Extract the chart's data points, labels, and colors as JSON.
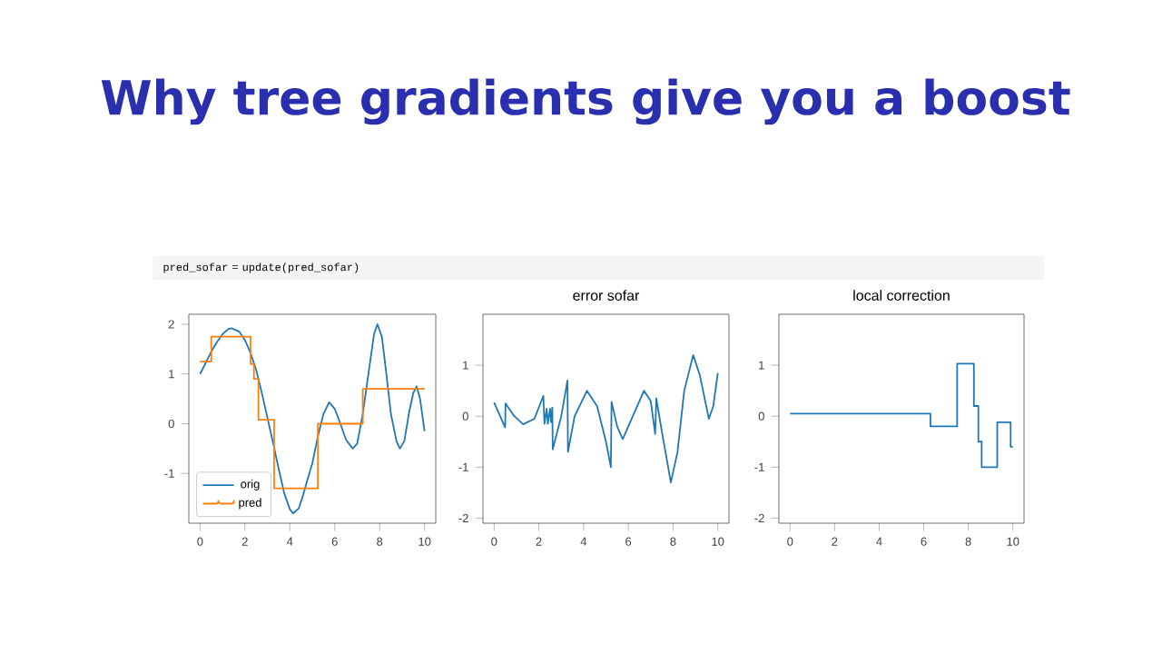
{
  "chart_data": [
    {
      "type": "line",
      "title": "Why tree gradients give you a boost",
      "annotations": [
        "pred_sofar = update(pred_sofar)"
      ],
      "xlim": [
        -0.5,
        10.5
      ],
      "ylim": [
        -2.0,
        2.2
      ],
      "xticks": [
        0,
        2,
        4,
        6,
        8,
        10
      ],
      "yticks": [
        -1,
        0,
        1,
        2
      ],
      "legend": "bottom left",
      "series": [
        {
          "name": "orig",
          "color": "#1f77b4",
          "x": [
            0,
            0.25,
            0.5,
            0.75,
            1.0,
            1.25,
            1.4,
            1.75,
            2.0,
            2.25,
            2.5,
            2.75,
            3.0,
            3.25,
            3.5,
            3.75,
            4.0,
            4.15,
            4.4,
            4.6,
            4.8,
            5.0,
            5.25,
            5.5,
            5.75,
            6.0,
            6.25,
            6.5,
            6.8,
            7.0,
            7.25,
            7.5,
            7.75,
            7.9,
            8.1,
            8.3,
            8.5,
            8.75,
            8.9,
            9.1,
            9.3,
            9.5,
            9.65,
            9.8,
            10
          ],
          "values": [
            1.0,
            1.22,
            1.45,
            1.64,
            1.8,
            1.9,
            1.92,
            1.85,
            1.68,
            1.42,
            1.08,
            0.62,
            0.12,
            -0.38,
            -0.9,
            -1.4,
            -1.72,
            -1.8,
            -1.7,
            -1.42,
            -1.1,
            -0.8,
            -0.25,
            0.2,
            0.43,
            0.3,
            0.0,
            -0.32,
            -0.5,
            -0.4,
            0.2,
            1.0,
            1.8,
            2.0,
            1.75,
            1.0,
            0.2,
            -0.35,
            -0.5,
            -0.35,
            0.2,
            0.62,
            0.75,
            0.5,
            -0.15
          ]
        },
        {
          "name": "pred",
          "type": "step",
          "color": "#ff7f0e",
          "x": [
            0,
            0.5,
            2.25,
            2.4,
            2.6,
            3.3,
            5.25,
            7.25,
            10
          ],
          "values": [
            1.25,
            1.75,
            1.2,
            0.9,
            0.08,
            -1.3,
            0.0,
            0.7,
            0.7
          ]
        }
      ]
    },
    {
      "type": "line",
      "title": "error sofar",
      "xlim": [
        -0.5,
        10.5
      ],
      "ylim": [
        -2.1,
        2.0
      ],
      "xticks": [
        0,
        2,
        4,
        6,
        8,
        10
      ],
      "yticks": [
        -2,
        -1,
        0,
        1
      ],
      "series": [
        {
          "color": "#1f77b4",
          "x": [
            0,
            0.49,
            0.51,
            0.9,
            1.3,
            1.8,
            2.2,
            2.25,
            2.35,
            2.4,
            2.5,
            2.55,
            2.6,
            2.62,
            3.0,
            3.28,
            3.3,
            3.6,
            4.15,
            4.6,
            5.0,
            5.22,
            5.25,
            5.5,
            5.75,
            6.2,
            6.7,
            7.0,
            7.2,
            7.25,
            7.5,
            7.9,
            8.2,
            8.5,
            8.9,
            9.2,
            9.6,
            9.8,
            10
          ],
          "values": [
            0.27,
            -0.22,
            0.25,
            0.0,
            -0.16,
            -0.05,
            0.4,
            -0.15,
            0.15,
            -0.15,
            0.15,
            -0.12,
            0.17,
            -0.65,
            0.0,
            0.7,
            -0.7,
            0.0,
            0.5,
            0.2,
            -0.5,
            -1.0,
            0.28,
            -0.2,
            -0.45,
            0.0,
            0.5,
            0.3,
            -0.35,
            0.35,
            -0.3,
            -1.3,
            -0.7,
            0.5,
            1.2,
            0.8,
            -0.05,
            0.2,
            0.85
          ]
        }
      ]
    },
    {
      "type": "step",
      "title": "local correction",
      "xlim": [
        -0.5,
        10.5
      ],
      "ylim": [
        -2.1,
        2.0
      ],
      "xticks": [
        0,
        2,
        4,
        6,
        8,
        10
      ],
      "yticks": [
        -2,
        -1,
        0,
        1
      ],
      "series": [
        {
          "color": "#1f77b4",
          "x": [
            0,
            6.3,
            7.5,
            8.25,
            8.45,
            8.6,
            9.3,
            9.9,
            10
          ],
          "values": [
            0.05,
            -0.2,
            1.03,
            0.2,
            -0.5,
            -1.0,
            -0.12,
            -0.6,
            -0.6
          ]
        }
      ]
    }
  ]
}
